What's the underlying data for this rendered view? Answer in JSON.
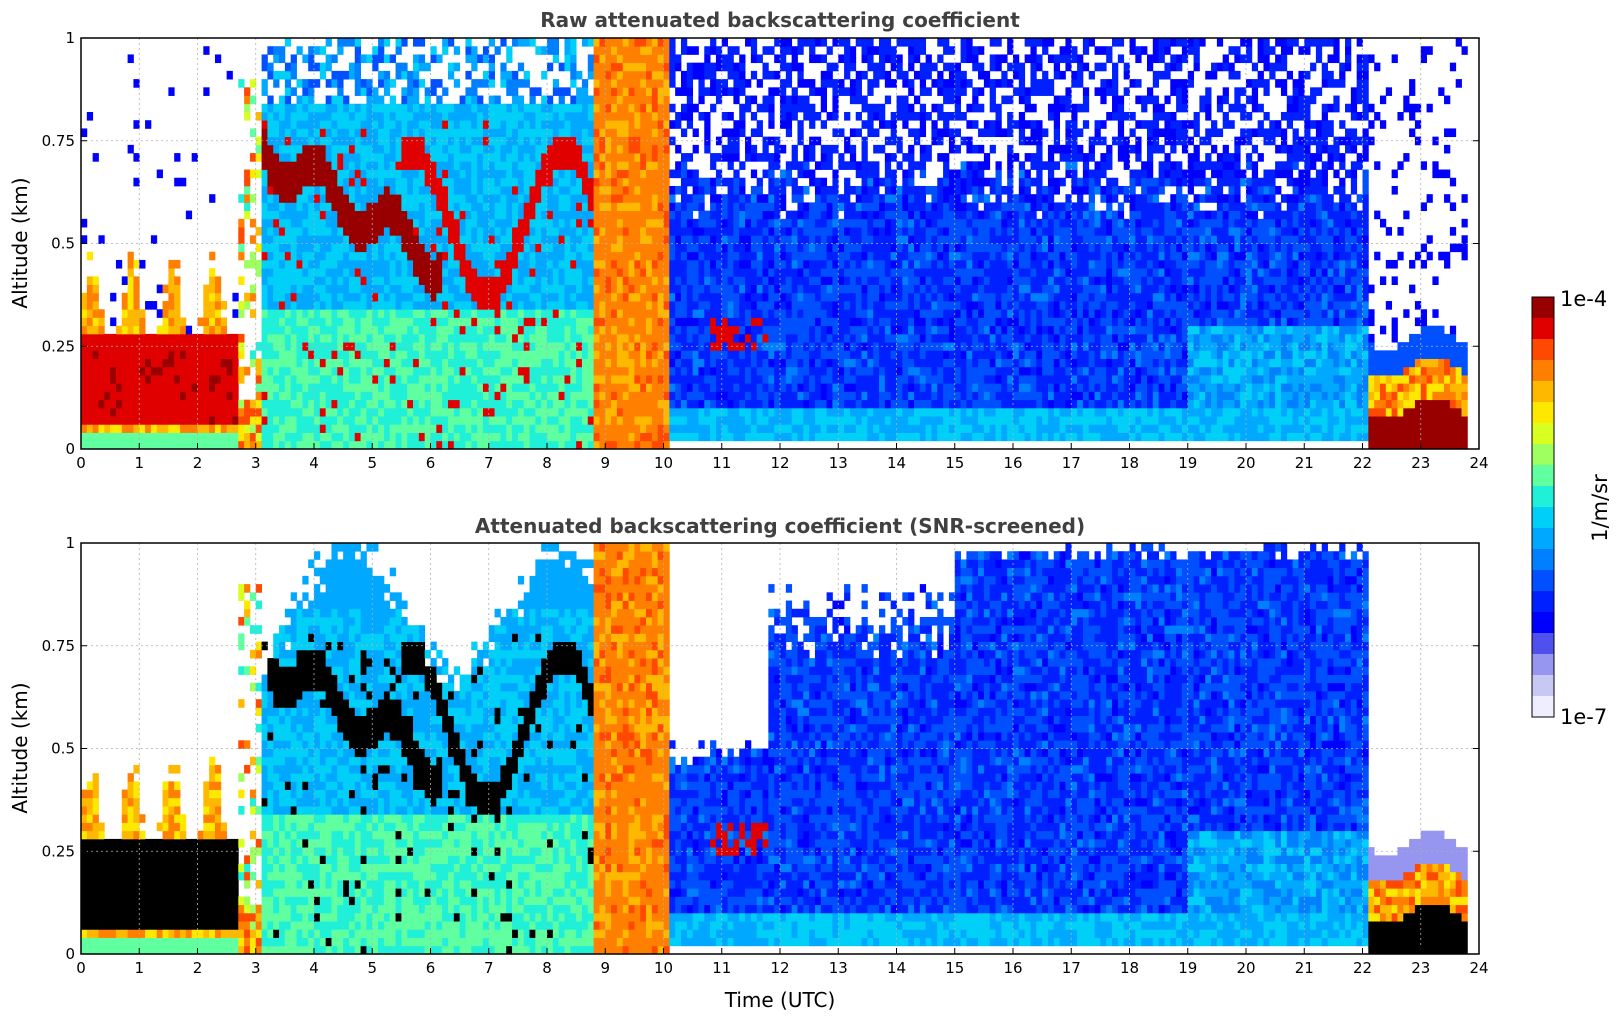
{
  "chart_data": [
    {
      "type": "heatmap",
      "title": "Raw attenuated backscattering coefficient",
      "xlabel": "",
      "ylabel": "Altitude (km)",
      "xlim": [
        0,
        24
      ],
      "ylim": [
        0,
        1
      ],
      "x_ticks": [
        "0",
        "1",
        "2",
        "3",
        "4",
        "5",
        "6",
        "7",
        "8",
        "9",
        "10",
        "11",
        "12",
        "13",
        "14",
        "15",
        "16",
        "17",
        "18",
        "19",
        "20",
        "21",
        "22",
        "23",
        "24"
      ],
      "y_ticks": [
        "0",
        "0.25",
        "0.5",
        "0.75",
        "1"
      ],
      "grid": true,
      "colorscale": "jet",
      "value_range": [
        "1e-7",
        "1e-4"
      ],
      "features": [
        {
          "x_range": [
            0,
            2.7
          ],
          "y_range": [
            0.05,
            0.3
          ],
          "level": "high"
        },
        {
          "x_range": [
            3.1,
            8.8
          ],
          "y_range": [
            0,
            1
          ],
          "level": "medium with high plumes"
        },
        {
          "x_range": [
            8.8,
            10.1
          ],
          "y_range": [
            0,
            1
          ],
          "level": "saturated"
        },
        {
          "x_range": [
            10.1,
            22.1
          ],
          "y_range": [
            0,
            0.7
          ],
          "level": "low"
        },
        {
          "x_range": [
            22.1,
            23.8
          ],
          "y_range": [
            0,
            0.25
          ],
          "level": "high"
        }
      ]
    },
    {
      "type": "heatmap",
      "title": "Attenuated backscattering coefficient (SNR-screened)",
      "xlabel": "Time (UTC)",
      "ylabel": "Altitude (km)",
      "xlim": [
        0,
        24
      ],
      "ylim": [
        0,
        1
      ],
      "x_ticks": [
        "0",
        "1",
        "2",
        "3",
        "4",
        "5",
        "6",
        "7",
        "8",
        "9",
        "10",
        "11",
        "12",
        "13",
        "14",
        "15",
        "16",
        "17",
        "18",
        "19",
        "20",
        "21",
        "22",
        "23",
        "24"
      ],
      "y_ticks": [
        "0",
        "0.25",
        "0.5",
        "0.75",
        "1"
      ],
      "grid": true,
      "colorscale": "jet",
      "value_range": [
        "1e-7",
        "1e-4"
      ],
      "features": [
        {
          "x_range": [
            0,
            2.7
          ],
          "y_range": [
            0.05,
            0.3
          ],
          "level": "over-range"
        },
        {
          "x_range": [
            3.1,
            8.8
          ],
          "y_range": [
            0,
            1
          ],
          "level": "medium with over-range plumes"
        },
        {
          "x_range": [
            8.8,
            10.1
          ],
          "y_range": [
            0,
            1
          ],
          "level": "saturated"
        },
        {
          "x_range": [
            10.1,
            22.1
          ],
          "y_range": [
            0,
            1
          ],
          "level": "low, screened above cloud top"
        },
        {
          "x_range": [
            22.1,
            23.8
          ],
          "y_range": [
            0,
            0.2
          ],
          "level": "over-range"
        }
      ]
    }
  ],
  "colorbar": {
    "max_label": "1e-4",
    "min_label": "1e-7",
    "unit_label": "1/m/sr",
    "colors": [
      "#eeeeff",
      "#c8c8f5",
      "#9696f0",
      "#5050ee",
      "#0000ff",
      "#0020ff",
      "#0050ff",
      "#0080ff",
      "#00a8ff",
      "#00d0f8",
      "#20f0d8",
      "#60ffa0",
      "#a0ff60",
      "#d8ff20",
      "#ffe800",
      "#ffb800",
      "#ff8000",
      "#ff4800",
      "#e00000",
      "#980000"
    ]
  }
}
